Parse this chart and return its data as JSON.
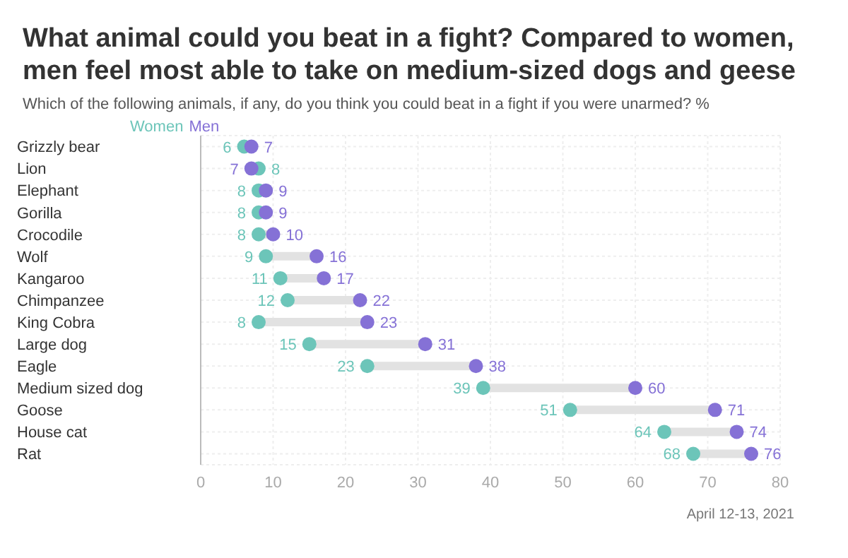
{
  "chart_data": {
    "type": "scatter",
    "title": "What animal could you beat in a fight? Compared to women, men feel most able to take on medium-sized dogs and geese",
    "subtitle": "Which of the following animals, if any, do you think you could beat in a fight if you were unarmed? %",
    "annotations": [
      "April 12-13, 2021"
    ],
    "categories": [
      "Grizzly bear",
      "Lion",
      "Elephant",
      "Gorilla",
      "Crocodile",
      "Wolf",
      "Kangaroo",
      "Chimpanzee",
      "King Cobra",
      "Large dog",
      "Eagle",
      "Medium sized dog",
      "Goose",
      "House cat",
      "Rat"
    ],
    "series": [
      {
        "name": "Women",
        "color": "#6cc5b9",
        "values": [
          6,
          8,
          8,
          8,
          8,
          9,
          11,
          12,
          8,
          15,
          23,
          39,
          51,
          64,
          68
        ]
      },
      {
        "name": "Men",
        "color": "#8571d6",
        "values": [
          7,
          7,
          9,
          9,
          10,
          16,
          17,
          22,
          23,
          31,
          38,
          60,
          71,
          74,
          76
        ]
      }
    ],
    "orientation": "horizontal",
    "xlim": [
      0,
      80
    ],
    "xticks": [
      0,
      10,
      20,
      30,
      40,
      50,
      60,
      70,
      80
    ],
    "grid": true,
    "legend": "top left",
    "data_labels": true,
    "marker": "circle"
  }
}
